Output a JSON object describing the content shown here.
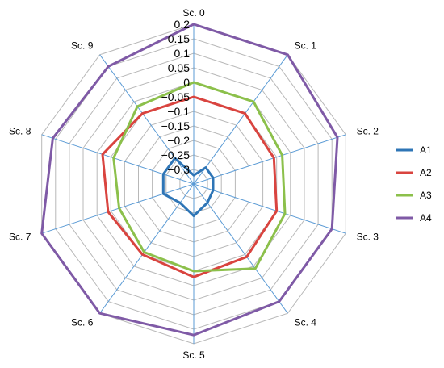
{
  "chart_data": {
    "type": "radar",
    "categories": [
      "Sc. 0",
      "Sc. 1",
      "Sc. 2",
      "Sc. 3",
      "Sc. 4",
      "Sc. 5",
      "Sc. 6",
      "Sc. 7",
      "Sc. 8",
      "Sc. 9"
    ],
    "rlim": [
      -0.35,
      0.2
    ],
    "ticks": [
      0.2,
      0.15,
      0.1,
      0.05,
      0,
      -0.05,
      -0.1,
      -0.15,
      -0.2,
      -0.25,
      -0.3
    ],
    "tick_labels": [
      "0.2",
      "0.15",
      "0.1",
      "0.05",
      "0",
      "−0.05",
      "−0.1",
      "−0.15",
      "−0.2",
      "−0.25",
      "−0.3"
    ],
    "grid": true,
    "legend": "right",
    "series": [
      {
        "name": "A1",
        "color": "#2e75b6",
        "values": [
          -0.32,
          -0.28,
          -0.28,
          -0.28,
          -0.27,
          -0.24,
          -0.27,
          -0.24,
          -0.24,
          -0.24
        ]
      },
      {
        "name": "A2",
        "color": "#d9443f",
        "values": [
          -0.05,
          -0.05,
          -0.06,
          -0.05,
          -0.04,
          -0.03,
          -0.05,
          -0.04,
          -0.02,
          -0.05
        ]
      },
      {
        "name": "A3",
        "color": "#8cc04b",
        "values": [
          0.0,
          0.0,
          -0.03,
          -0.02,
          0.01,
          -0.05,
          -0.06,
          -0.08,
          -0.06,
          -0.02
        ]
      },
      {
        "name": "A4",
        "color": "#7f5aa6",
        "values": [
          0.2,
          0.2,
          0.17,
          0.15,
          0.15,
          0.17,
          0.2,
          0.2,
          0.16,
          0.15
        ]
      }
    ]
  }
}
